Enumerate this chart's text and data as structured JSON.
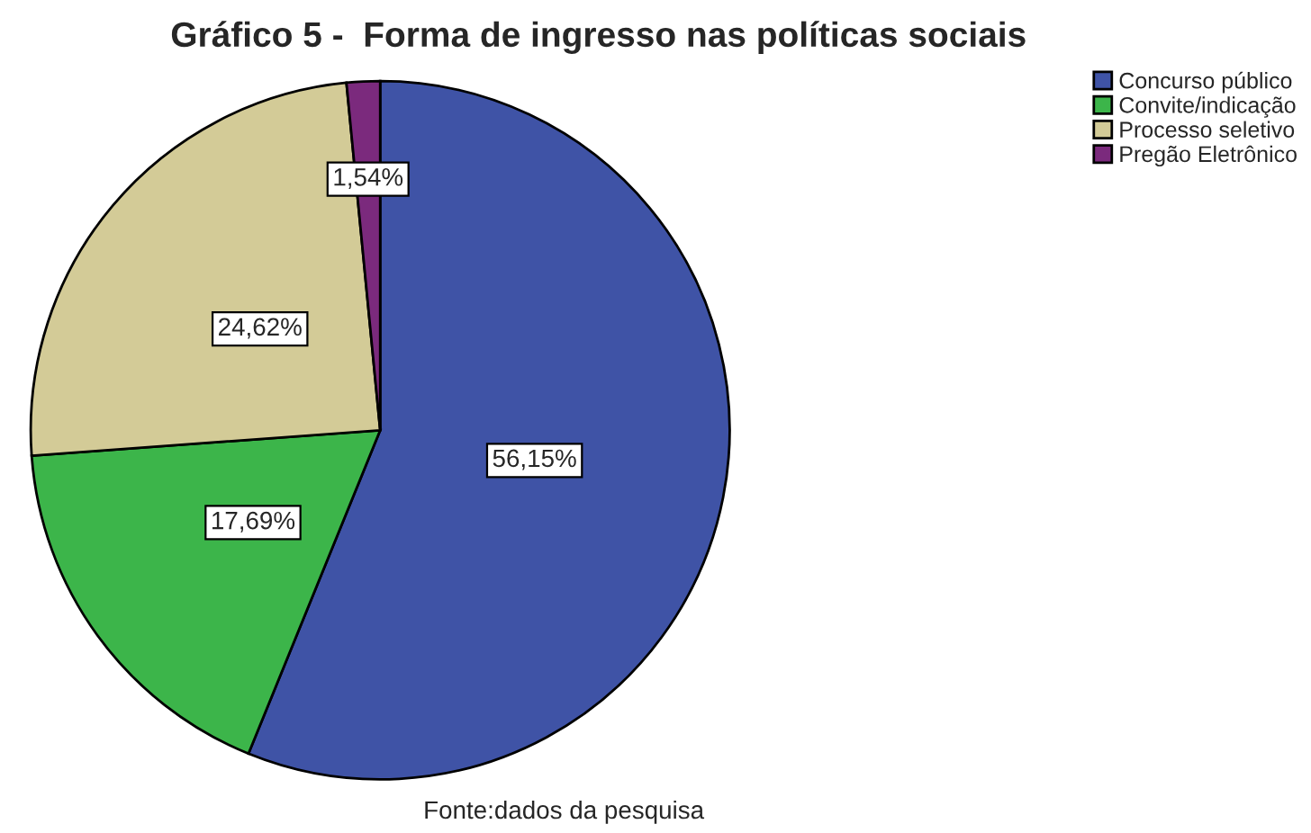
{
  "chart_data": {
    "type": "pie",
    "title": "Gráfico 5 -  Forma de ingresso nas políticas sociais",
    "categories": [
      "Concurso público",
      "Convite/indicação",
      "Processo seletivo",
      "Pregão Eletrônico"
    ],
    "values": [
      56.15,
      17.69,
      24.62,
      1.54
    ],
    "colors": [
      "#3f53a6",
      "#3cb54a",
      "#d3cb97",
      "#7b2a7d"
    ],
    "value_labels": [
      "56,15%",
      "17,69%",
      "24,62%",
      "1,54%"
    ],
    "legend": "top right",
    "annotations": [
      "Fonte:dados da pesquisa"
    ]
  }
}
